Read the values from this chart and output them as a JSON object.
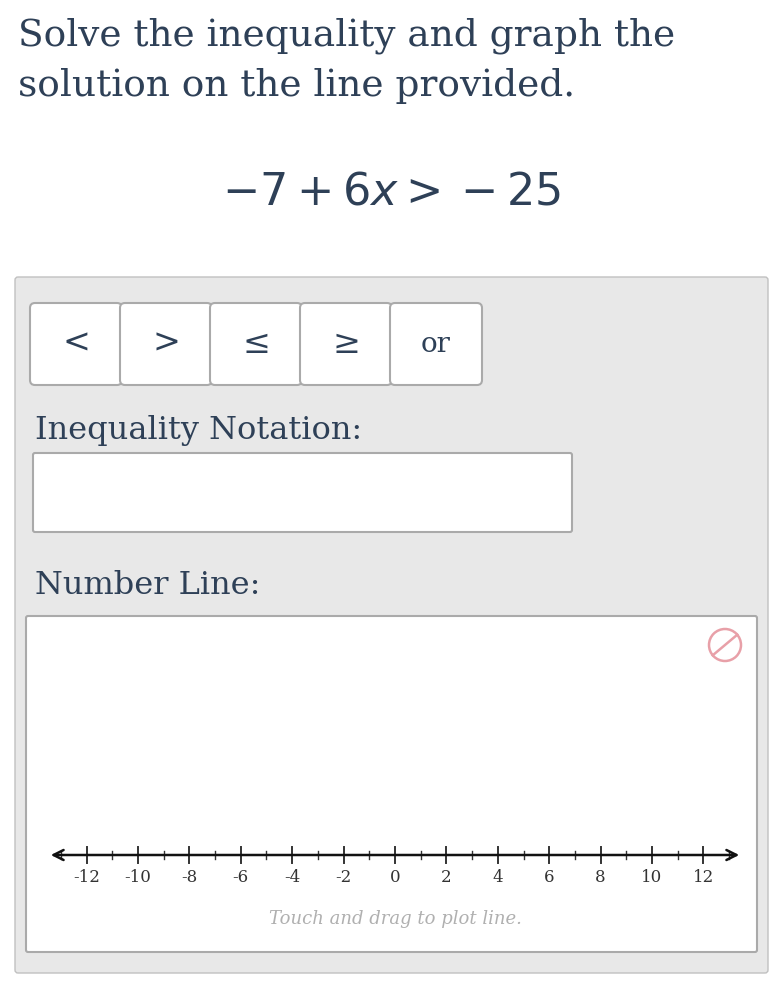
{
  "title_line1": "Solve the inequality and graph the",
  "title_line2": "solution on the line provided.",
  "equation": "$-7 + 6x > -25$",
  "bg_color": "#ffffff",
  "panel_bg": "#e8e8e8",
  "panel_border": "#c0c0c0",
  "button_symbols": [
    "<",
    ">",
    "≤",
    "≥",
    "or"
  ],
  "inequality_notation_label": "Inequality Notation:",
  "number_line_label": "Number Line:",
  "number_line_caption": "Touch and drag to plot line.",
  "number_line_ticks": [
    -12,
    -10,
    -8,
    -6,
    -4,
    -2,
    0,
    2,
    4,
    6,
    8,
    10,
    12
  ],
  "number_line_min": -13.5,
  "number_line_max": 13.5,
  "title_color": "#2e4057",
  "equation_color": "#2e4057",
  "label_color": "#2e4057",
  "caption_color": "#b0b0b0",
  "erase_icon_color": "#e8a0a8",
  "box_border": "#aaaaaa",
  "tick_color": "#333333",
  "arrow_color": "#111111"
}
